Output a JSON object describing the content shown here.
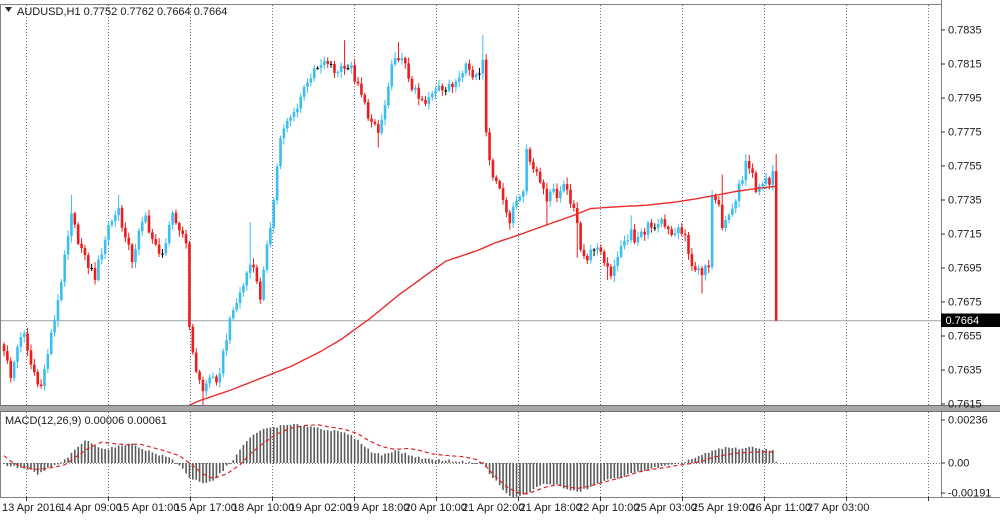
{
  "window": {
    "symbol_title": "AUDUSD,H1 0.7752 0.7762 0.7664 0.7664"
  },
  "chart_data": {
    "type": "candlestick",
    "symbol": "AUDUSD",
    "timeframe": "H1",
    "title": "AUDUSD,H1 0.7752 0.7762 0.7664 0.7664",
    "indicator_label": "MACD(12,26,9) 0.00006 0.00061",
    "current_price": "0.7664",
    "last_bar": {
      "open": 0.7752,
      "high": 0.7762,
      "low": 0.7664,
      "close": 0.7664
    },
    "bars": 230,
    "price_axis_ticks": [
      "0.7835",
      "0.7815",
      "0.7795",
      "0.7775",
      "0.7755",
      "0.7735",
      "0.7715",
      "0.7695",
      "0.7675",
      "0.7655",
      "0.7635",
      "0.7615"
    ],
    "macd_axis_ticks": [
      {
        "label": "0.00236",
        "value": 0.00236
      },
      {
        "label": "0.00",
        "value": 0.0
      },
      {
        "label": "-0.00191",
        "value": -0.00191
      }
    ],
    "time_labels": [
      "13 Apr 2016",
      "14 Apr 09:00",
      "15 Apr 01:00",
      "15 Apr 17:00",
      "18 Apr 10:00",
      "19 Apr 02:00",
      "19 Apr 18:00",
      "20 Apr 10:00",
      "21 Apr 02:00",
      "21 Apr 18:00",
      "22 Apr 10:00",
      "25 Apr 03:00",
      "25 Apr 19:00",
      "26 Apr 11:00",
      "27 Apr 03:00"
    ],
    "price_range": {
      "top": 0.785,
      "bottom": 0.7614
    },
    "macd_range": {
      "top": 0.0028,
      "bottom": -0.00187
    },
    "close_path_anchors": [
      [
        0,
        0.7648
      ],
      [
        2,
        0.763
      ],
      [
        4,
        0.765
      ],
      [
        6,
        0.7655
      ],
      [
        8,
        0.7638
      ],
      [
        11,
        0.7625
      ],
      [
        13,
        0.7645
      ],
      [
        15,
        0.7665
      ],
      [
        18,
        0.77
      ],
      [
        20,
        0.7725
      ],
      [
        22,
        0.7712
      ],
      [
        24,
        0.77
      ],
      [
        27,
        0.769
      ],
      [
        29,
        0.7705
      ],
      [
        31,
        0.772
      ],
      [
        34,
        0.773
      ],
      [
        36,
        0.7712
      ],
      [
        38,
        0.77
      ],
      [
        40,
        0.7715
      ],
      [
        42,
        0.7725
      ],
      [
        44,
        0.7712
      ],
      [
        46,
        0.7702
      ],
      [
        48,
        0.771
      ],
      [
        50,
        0.7725
      ],
      [
        52,
        0.7718
      ],
      [
        54,
        0.7712
      ],
      [
        55,
        0.7658
      ],
      [
        57,
        0.7635
      ],
      [
        59,
        0.7622
      ],
      [
        61,
        0.7632
      ],
      [
        63,
        0.7625
      ],
      [
        65,
        0.7645
      ],
      [
        66,
        0.7655
      ],
      [
        68,
        0.767
      ],
      [
        71,
        0.7685
      ],
      [
        73,
        0.77
      ],
      [
        75,
        0.7688
      ],
      [
        76,
        0.7678
      ],
      [
        79,
        0.772
      ],
      [
        82,
        0.7772
      ],
      [
        84,
        0.778
      ],
      [
        86,
        0.7786
      ],
      [
        88,
        0.7796
      ],
      [
        90,
        0.7806
      ],
      [
        93,
        0.7812
      ],
      [
        96,
        0.7816
      ],
      [
        98,
        0.781
      ],
      [
        101,
        0.7815
      ],
      [
        103,
        0.7812
      ],
      [
        105,
        0.7801
      ],
      [
        107,
        0.7791
      ],
      [
        109,
        0.778
      ],
      [
        111,
        0.7774
      ],
      [
        113,
        0.779
      ],
      [
        115,
        0.7812
      ],
      [
        117,
        0.782
      ],
      [
        119,
        0.7813
      ],
      [
        121,
        0.7802
      ],
      [
        123,
        0.7794
      ],
      [
        125,
        0.7791
      ],
      [
        127,
        0.7797
      ],
      [
        129,
        0.7804
      ],
      [
        131,
        0.78
      ],
      [
        133,
        0.7802
      ],
      [
        135,
        0.781
      ],
      [
        137,
        0.7815
      ],
      [
        139,
        0.7808
      ],
      [
        141,
        0.7812
      ],
      [
        142,
        0.782
      ],
      [
        143,
        0.7772
      ],
      [
        145,
        0.775
      ],
      [
        147,
        0.7742
      ],
      [
        149,
        0.773
      ],
      [
        150,
        0.7722
      ],
      [
        152,
        0.7735
      ],
      [
        154,
        0.7742
      ],
      [
        155,
        0.7762
      ],
      [
        157,
        0.7755
      ],
      [
        159,
        0.7748
      ],
      [
        161,
        0.7735
      ],
      [
        162,
        0.7742
      ],
      [
        164,
        0.7738
      ],
      [
        166,
        0.7742
      ],
      [
        168,
        0.7735
      ],
      [
        170,
        0.772
      ],
      [
        171,
        0.7708
      ],
      [
        173,
        0.77
      ],
      [
        175,
        0.7708
      ],
      [
        177,
        0.7702
      ],
      [
        179,
        0.7696
      ],
      [
        180,
        0.7692
      ],
      [
        182,
        0.7703
      ],
      [
        184,
        0.771
      ],
      [
        186,
        0.7716
      ],
      [
        187,
        0.771
      ],
      [
        189,
        0.7715
      ],
      [
        191,
        0.772
      ],
      [
        193,
        0.7716
      ],
      [
        195,
        0.7722
      ],
      [
        196,
        0.7718
      ],
      [
        198,
        0.7714
      ],
      [
        200,
        0.7718
      ],
      [
        202,
        0.7712
      ],
      [
        203,
        0.7702
      ],
      [
        205,
        0.7695
      ],
      [
        207,
        0.769
      ],
      [
        209,
        0.7698
      ],
      [
        210,
        0.774
      ],
      [
        212,
        0.7735
      ],
      [
        213,
        0.772
      ],
      [
        215,
        0.7726
      ],
      [
        217,
        0.7735
      ],
      [
        218,
        0.7742
      ],
      [
        220,
        0.7756
      ],
      [
        222,
        0.7748
      ],
      [
        223,
        0.7738
      ],
      [
        225,
        0.7744
      ],
      [
        226,
        0.7748
      ],
      [
        227,
        0.7744
      ],
      [
        228,
        0.7752
      ],
      [
        229,
        0.7664
      ]
    ],
    "wick_overrides": [
      [
        20,
        "h",
        0.7738
      ],
      [
        34,
        "h",
        0.7738
      ],
      [
        59,
        "l",
        0.7608
      ],
      [
        73,
        "h",
        0.7722
      ],
      [
        101,
        "h",
        0.7829
      ],
      [
        111,
        "l",
        0.7766
      ],
      [
        117,
        "h",
        0.7828
      ],
      [
        142,
        "h",
        0.7832
      ],
      [
        150,
        "l",
        0.7718
      ],
      [
        161,
        "l",
        0.772
      ],
      [
        170,
        "l",
        0.7701
      ],
      [
        179,
        "l",
        0.7688
      ],
      [
        186,
        "h",
        0.7726
      ],
      [
        207,
        "l",
        0.768
      ],
      [
        213,
        "h",
        0.775
      ],
      [
        220,
        "h",
        0.7762
      ]
    ],
    "ma_line_anchors": [
      [
        50,
        0.761
      ],
      [
        58,
        0.7617
      ],
      [
        67,
        0.7623
      ],
      [
        76,
        0.763
      ],
      [
        85,
        0.7637
      ],
      [
        94,
        0.7646
      ],
      [
        100,
        0.7653
      ],
      [
        109,
        0.7666
      ],
      [
        117,
        0.7679
      ],
      [
        126,
        0.7692
      ],
      [
        131,
        0.7699
      ],
      [
        140,
        0.7705
      ],
      [
        146,
        0.771
      ],
      [
        152,
        0.7714
      ],
      [
        159,
        0.7719
      ],
      [
        169,
        0.7726
      ],
      [
        174,
        0.773
      ],
      [
        182,
        0.7731
      ],
      [
        191,
        0.7732
      ],
      [
        200,
        0.7734
      ],
      [
        209,
        0.7737
      ],
      [
        217,
        0.774
      ],
      [
        224,
        0.7742
      ],
      [
        229,
        0.7743
      ]
    ],
    "macd_histogram_anchors": [
      [
        0,
        -0.0001
      ],
      [
        3,
        -0.0002
      ],
      [
        8,
        -0.0004
      ],
      [
        10,
        -0.00065
      ],
      [
        13,
        -0.0003
      ],
      [
        17,
        0.0
      ],
      [
        20,
        0.0005
      ],
      [
        24,
        0.00125
      ],
      [
        28,
        0.0009
      ],
      [
        30,
        0.00075
      ],
      [
        34,
        0.0009
      ],
      [
        37,
        0.0011
      ],
      [
        41,
        0.0008
      ],
      [
        45,
        0.0005
      ],
      [
        49,
        0.0003
      ],
      [
        52,
        -0.0001
      ],
      [
        55,
        -0.0008
      ],
      [
        59,
        -0.00115
      ],
      [
        62,
        -0.001
      ],
      [
        65,
        -0.0004
      ],
      [
        68,
        0.0002
      ],
      [
        72,
        0.0012
      ],
      [
        75,
        0.0017
      ],
      [
        79,
        0.00195
      ],
      [
        83,
        0.00205
      ],
      [
        87,
        0.0021
      ],
      [
        91,
        0.002
      ],
      [
        94,
        0.0019
      ],
      [
        98,
        0.00175
      ],
      [
        102,
        0.0016
      ],
      [
        106,
        0.0011
      ],
      [
        109,
        0.0006
      ],
      [
        112,
        0.00045
      ],
      [
        116,
        0.0007
      ],
      [
        119,
        0.0005
      ],
      [
        123,
        0.0003
      ],
      [
        126,
        0.0002
      ],
      [
        131,
        0.00015
      ],
      [
        135,
        0.0001
      ],
      [
        139,
        0.0
      ],
      [
        142,
        5e-05
      ],
      [
        144,
        -0.0006
      ],
      [
        146,
        -0.001
      ],
      [
        149,
        -0.0017
      ],
      [
        151,
        -0.0019
      ],
      [
        153,
        -0.00185
      ],
      [
        156,
        -0.0016
      ],
      [
        159,
        -0.0012
      ],
      [
        162,
        -0.00115
      ],
      [
        164,
        -0.0012
      ],
      [
        167,
        -0.00145
      ],
      [
        170,
        -0.0016
      ],
      [
        173,
        -0.0014
      ],
      [
        177,
        -0.00105
      ],
      [
        180,
        -0.0009
      ],
      [
        184,
        -0.0007
      ],
      [
        188,
        -0.0005
      ],
      [
        191,
        -0.00035
      ],
      [
        195,
        -0.0002
      ],
      [
        199,
        -0.0001
      ],
      [
        202,
        0.0001
      ],
      [
        205,
        0.0003
      ],
      [
        208,
        0.0005
      ],
      [
        211,
        0.0007
      ],
      [
        214,
        0.00085
      ],
      [
        218,
        0.0008
      ],
      [
        221,
        0.00085
      ],
      [
        224,
        0.0008
      ],
      [
        226,
        0.00075
      ],
      [
        228,
        0.0007
      ],
      [
        229,
        6e-05
      ]
    ],
    "macd_signal_anchors": [
      [
        0,
        0.0004
      ],
      [
        2,
        0.0001
      ],
      [
        5,
        -0.0002
      ],
      [
        9,
        -0.00035
      ],
      [
        13,
        -0.0003
      ],
      [
        18,
        -0.0001
      ],
      [
        21,
        0.0003
      ],
      [
        25,
        0.0008
      ],
      [
        29,
        0.00115
      ],
      [
        33,
        0.00105
      ],
      [
        37,
        0.001
      ],
      [
        40,
        0.00105
      ],
      [
        43,
        0.0009
      ],
      [
        47,
        0.0007
      ],
      [
        52,
        0.0004
      ],
      [
        55,
        0.0
      ],
      [
        59,
        -0.0006
      ],
      [
        62,
        -0.00085
      ],
      [
        66,
        -0.0006
      ],
      [
        70,
        -0.0001
      ],
      [
        73,
        0.0005
      ],
      [
        77,
        0.0011
      ],
      [
        81,
        0.0016
      ],
      [
        85,
        0.0019
      ],
      [
        89,
        0.00205
      ],
      [
        93,
        0.0021
      ],
      [
        96,
        0.002
      ],
      [
        101,
        0.00185
      ],
      [
        105,
        0.0016
      ],
      [
        108,
        0.00125
      ],
      [
        112,
        0.0009
      ],
      [
        116,
        0.00075
      ],
      [
        120,
        0.0008
      ],
      [
        123,
        0.0007
      ],
      [
        127,
        0.0005
      ],
      [
        132,
        0.0004
      ],
      [
        136,
        0.00035
      ],
      [
        140,
        0.0002
      ],
      [
        143,
        -0.0002
      ],
      [
        146,
        -0.0008
      ],
      [
        149,
        -0.0013
      ],
      [
        152,
        -0.0016
      ],
      [
        155,
        -0.0017
      ],
      [
        158,
        -0.0015
      ],
      [
        161,
        -0.0013
      ],
      [
        164,
        -0.0012
      ],
      [
        167,
        -0.0013
      ],
      [
        170,
        -0.0014
      ],
      [
        174,
        -0.00125
      ],
      [
        177,
        -0.0011
      ],
      [
        181,
        -0.0009
      ],
      [
        185,
        -0.0007
      ],
      [
        188,
        -0.0005
      ],
      [
        192,
        -0.00035
      ],
      [
        196,
        -0.00025
      ],
      [
        199,
        -0.00015
      ],
      [
        203,
        -5e-05
      ],
      [
        207,
        0.0001
      ],
      [
        210,
        0.0003
      ],
      [
        214,
        0.00045
      ],
      [
        218,
        0.00055
      ],
      [
        222,
        0.0006
      ],
      [
        229,
        0.00061
      ]
    ],
    "colors": {
      "background": "#ffffff",
      "bull": "#3bbef0",
      "bear": "#ee1c1c",
      "doji": "#000000",
      "ma_line": "#e62e2e",
      "macd_histogram": "#5a5a5a",
      "macd_signal": "#e02020",
      "grid": "#6b6b6b",
      "price_line": "#a7adb5",
      "price_tag_bg": "#000000",
      "price_tag_text": "#ffffff",
      "panel_splitter": "#a8a8a8",
      "splitter_edge": "#6e6e6e",
      "axis_text": "#1a1a1a",
      "border": "#808080"
    }
  }
}
